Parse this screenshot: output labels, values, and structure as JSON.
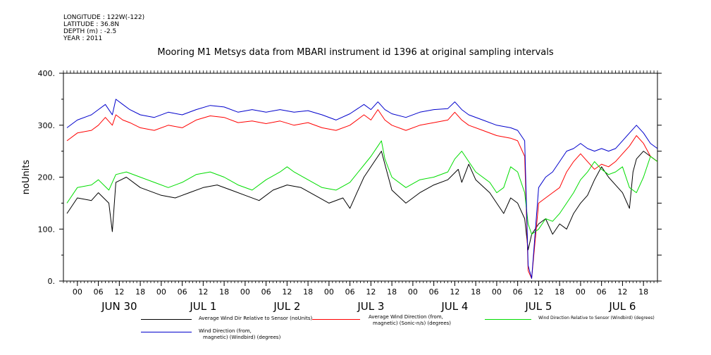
{
  "metadata": {
    "longitude": "LONGITUDE : 122W(-122)",
    "latitude": "LATITUDE : 36.8N",
    "depth": "DEPTH (m) : -2.5",
    "year": "YEAR : 2011"
  },
  "chart_data": {
    "type": "line",
    "title": "Mooring M1 Metsys data from MBARI instrument id 1396 at original sampling intervals",
    "ylabel": "noUnits",
    "ylim": [
      0,
      400
    ],
    "yticks": [
      0,
      100,
      200,
      300,
      400
    ],
    "ytick_labels": [
      "0.",
      "100.",
      "200.",
      "300.",
      "400."
    ],
    "xlim_hours": [
      -4,
      166
    ],
    "hour_ticks": [
      "00",
      "06",
      "12",
      "18",
      "00",
      "06",
      "12",
      "18",
      "00",
      "06",
      "12",
      "18",
      "00",
      "06",
      "12",
      "18",
      "00",
      "06",
      "12",
      "18",
      "00",
      "06",
      "12",
      "18",
      "00",
      "06",
      "12",
      "18"
    ],
    "hour_tick_values": [
      0,
      6,
      12,
      18,
      24,
      30,
      36,
      42,
      48,
      54,
      60,
      66,
      72,
      78,
      84,
      90,
      96,
      102,
      108,
      114,
      120,
      126,
      132,
      138,
      144,
      150,
      156,
      162
    ],
    "day_labels": [
      "JUN 30",
      "JUL  1",
      "JUL  2",
      "JUL  3",
      "JUL  4",
      "JUL  5",
      "JUL  6"
    ],
    "day_label_hours": [
      12,
      36,
      60,
      84,
      108,
      132,
      156
    ],
    "grid": false,
    "series": [
      {
        "name": "Average Wind Dir Relative to Sensor (noUnits)",
        "color": "#000000",
        "points": [
          [
            -3,
            130
          ],
          [
            0,
            160
          ],
          [
            4,
            155
          ],
          [
            6,
            170
          ],
          [
            9,
            150
          ],
          [
            10,
            95
          ],
          [
            11,
            190
          ],
          [
            14,
            200
          ],
          [
            18,
            180
          ],
          [
            24,
            165
          ],
          [
            28,
            160
          ],
          [
            32,
            170
          ],
          [
            36,
            180
          ],
          [
            40,
            185
          ],
          [
            44,
            175
          ],
          [
            48,
            165
          ],
          [
            52,
            155
          ],
          [
            56,
            175
          ],
          [
            60,
            185
          ],
          [
            64,
            180
          ],
          [
            68,
            165
          ],
          [
            72,
            150
          ],
          [
            76,
            160
          ],
          [
            78,
            140
          ],
          [
            80,
            170
          ],
          [
            82,
            200
          ],
          [
            85,
            230
          ],
          [
            87,
            250
          ],
          [
            88,
            225
          ],
          [
            90,
            175
          ],
          [
            94,
            150
          ],
          [
            98,
            170
          ],
          [
            102,
            185
          ],
          [
            106,
            195
          ],
          [
            109,
            215
          ],
          [
            110,
            190
          ],
          [
            112,
            225
          ],
          [
            114,
            195
          ],
          [
            118,
            170
          ],
          [
            120,
            150
          ],
          [
            122,
            130
          ],
          [
            124,
            160
          ],
          [
            126,
            150
          ],
          [
            128,
            120
          ],
          [
            129,
            60
          ],
          [
            130,
            90
          ],
          [
            132,
            110
          ],
          [
            134,
            120
          ],
          [
            136,
            90
          ],
          [
            138,
            110
          ],
          [
            140,
            100
          ],
          [
            142,
            130
          ],
          [
            144,
            150
          ],
          [
            146,
            165
          ],
          [
            148,
            195
          ],
          [
            150,
            220
          ],
          [
            152,
            200
          ],
          [
            154,
            185
          ],
          [
            156,
            170
          ],
          [
            158,
            140
          ],
          [
            159,
            210
          ],
          [
            160,
            235
          ],
          [
            162,
            250
          ],
          [
            164,
            240
          ],
          [
            166,
            230
          ]
        ]
      },
      {
        "name": "Average Wind Direction (from, magnetic) (Sonic-n/s) (degrees)",
        "color": "#ff0000",
        "points": [
          [
            -3,
            270
          ],
          [
            0,
            285
          ],
          [
            4,
            290
          ],
          [
            6,
            300
          ],
          [
            8,
            315
          ],
          [
            10,
            300
          ],
          [
            11,
            320
          ],
          [
            13,
            310
          ],
          [
            15,
            305
          ],
          [
            18,
            295
          ],
          [
            22,
            290
          ],
          [
            26,
            300
          ],
          [
            30,
            295
          ],
          [
            34,
            310
          ],
          [
            38,
            318
          ],
          [
            42,
            315
          ],
          [
            46,
            305
          ],
          [
            50,
            308
          ],
          [
            54,
            303
          ],
          [
            58,
            308
          ],
          [
            62,
            300
          ],
          [
            66,
            305
          ],
          [
            70,
            295
          ],
          [
            74,
            290
          ],
          [
            78,
            300
          ],
          [
            82,
            320
          ],
          [
            84,
            310
          ],
          [
            86,
            330
          ],
          [
            88,
            310
          ],
          [
            90,
            300
          ],
          [
            94,
            290
          ],
          [
            98,
            300
          ],
          [
            102,
            305
          ],
          [
            106,
            310
          ],
          [
            108,
            325
          ],
          [
            110,
            310
          ],
          [
            112,
            300
          ],
          [
            116,
            290
          ],
          [
            120,
            280
          ],
          [
            124,
            275
          ],
          [
            126,
            270
          ],
          [
            128,
            240
          ],
          [
            129,
            20
          ],
          [
            130,
            5
          ],
          [
            132,
            150
          ],
          [
            134,
            160
          ],
          [
            136,
            170
          ],
          [
            138,
            180
          ],
          [
            140,
            210
          ],
          [
            142,
            230
          ],
          [
            144,
            245
          ],
          [
            146,
            230
          ],
          [
            148,
            215
          ],
          [
            150,
            225
          ],
          [
            152,
            220
          ],
          [
            154,
            230
          ],
          [
            156,
            245
          ],
          [
            158,
            260
          ],
          [
            160,
            280
          ],
          [
            162,
            265
          ],
          [
            164,
            240
          ],
          [
            166,
            230
          ]
        ]
      },
      {
        "name": "Wind Direction Relative to Sensor (Windbird) (degrees)",
        "color": "#00dd00",
        "points": [
          [
            -3,
            150
          ],
          [
            0,
            180
          ],
          [
            4,
            185
          ],
          [
            6,
            195
          ],
          [
            9,
            175
          ],
          [
            11,
            205
          ],
          [
            14,
            210
          ],
          [
            18,
            200
          ],
          [
            22,
            190
          ],
          [
            26,
            180
          ],
          [
            30,
            190
          ],
          [
            34,
            205
          ],
          [
            38,
            210
          ],
          [
            42,
            200
          ],
          [
            46,
            185
          ],
          [
            50,
            175
          ],
          [
            54,
            195
          ],
          [
            58,
            210
          ],
          [
            60,
            220
          ],
          [
            62,
            210
          ],
          [
            66,
            195
          ],
          [
            70,
            180
          ],
          [
            74,
            175
          ],
          [
            78,
            190
          ],
          [
            81,
            215
          ],
          [
            84,
            240
          ],
          [
            86,
            260
          ],
          [
            87,
            270
          ],
          [
            88,
            235
          ],
          [
            90,
            200
          ],
          [
            94,
            180
          ],
          [
            98,
            195
          ],
          [
            102,
            200
          ],
          [
            106,
            210
          ],
          [
            108,
            235
          ],
          [
            110,
            250
          ],
          [
            112,
            230
          ],
          [
            114,
            210
          ],
          [
            118,
            190
          ],
          [
            120,
            170
          ],
          [
            122,
            180
          ],
          [
            124,
            220
          ],
          [
            126,
            210
          ],
          [
            128,
            170
          ],
          [
            129,
            110
          ],
          [
            130,
            90
          ],
          [
            132,
            100
          ],
          [
            134,
            120
          ],
          [
            136,
            115
          ],
          [
            138,
            130
          ],
          [
            140,
            150
          ],
          [
            142,
            170
          ],
          [
            144,
            195
          ],
          [
            146,
            210
          ],
          [
            148,
            230
          ],
          [
            150,
            215
          ],
          [
            152,
            205
          ],
          [
            154,
            210
          ],
          [
            156,
            220
          ],
          [
            158,
            180
          ],
          [
            160,
            170
          ],
          [
            162,
            200
          ],
          [
            164,
            240
          ],
          [
            166,
            230
          ]
        ]
      },
      {
        "name": "Wind Direction (from, magnetic) (Windbird) (degrees)",
        "color": "#0000cc",
        "points": [
          [
            -3,
            295
          ],
          [
            0,
            310
          ],
          [
            4,
            320
          ],
          [
            6,
            330
          ],
          [
            8,
            340
          ],
          [
            10,
            320
          ],
          [
            11,
            350
          ],
          [
            13,
            340
          ],
          [
            15,
            330
          ],
          [
            18,
            320
          ],
          [
            22,
            315
          ],
          [
            26,
            325
          ],
          [
            30,
            320
          ],
          [
            34,
            330
          ],
          [
            38,
            338
          ],
          [
            42,
            335
          ],
          [
            46,
            325
          ],
          [
            50,
            330
          ],
          [
            54,
            325
          ],
          [
            58,
            330
          ],
          [
            62,
            325
          ],
          [
            66,
            328
          ],
          [
            70,
            320
          ],
          [
            74,
            310
          ],
          [
            78,
            322
          ],
          [
            82,
            340
          ],
          [
            84,
            330
          ],
          [
            86,
            345
          ],
          [
            88,
            330
          ],
          [
            90,
            322
          ],
          [
            94,
            315
          ],
          [
            98,
            325
          ],
          [
            102,
            330
          ],
          [
            106,
            332
          ],
          [
            108,
            345
          ],
          [
            110,
            330
          ],
          [
            112,
            320
          ],
          [
            116,
            310
          ],
          [
            120,
            300
          ],
          [
            124,
            295
          ],
          [
            126,
            290
          ],
          [
            128,
            270
          ],
          [
            129,
            30
          ],
          [
            130,
            5
          ],
          [
            132,
            180
          ],
          [
            134,
            200
          ],
          [
            136,
            210
          ],
          [
            138,
            230
          ],
          [
            140,
            250
          ],
          [
            142,
            255
          ],
          [
            144,
            265
          ],
          [
            146,
            255
          ],
          [
            148,
            250
          ],
          [
            150,
            255
          ],
          [
            152,
            250
          ],
          [
            154,
            255
          ],
          [
            156,
            270
          ],
          [
            158,
            285
          ],
          [
            160,
            300
          ],
          [
            162,
            285
          ],
          [
            164,
            265
          ],
          [
            166,
            255
          ]
        ]
      }
    ],
    "legend": {
      "position": "bottom",
      "entries": [
        {
          "line1": "Average Wind Dir Relative to Sensor (noUnits)",
          "line2": ""
        },
        {
          "line1": "Average Wind Direction (from,",
          "line2": "magnetic) (Sonic-n/s) (degrees)"
        },
        {
          "line1": "Wind Direction Relative to Sensor (Windbird) (degrees)",
          "line2": ""
        },
        {
          "line1": "Wind Direction (from,",
          "line2": "magnetic) (Windbird) (degrees)"
        }
      ]
    }
  }
}
